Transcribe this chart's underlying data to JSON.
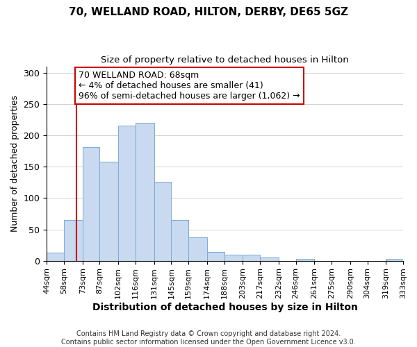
{
  "title": "70, WELLAND ROAD, HILTON, DERBY, DE65 5GZ",
  "subtitle": "Size of property relative to detached houses in Hilton",
  "xlabel": "Distribution of detached houses by size in Hilton",
  "ylabel": "Number of detached properties",
  "bar_edges": [
    44,
    58,
    73,
    87,
    102,
    116,
    131,
    145,
    159,
    174,
    188,
    203,
    217,
    232,
    246,
    261,
    275,
    290,
    304,
    319,
    333
  ],
  "bar_heights": [
    13,
    65,
    181,
    158,
    216,
    220,
    126,
    65,
    37,
    14,
    10,
    10,
    5,
    0,
    3,
    0,
    0,
    0,
    0,
    3
  ],
  "bar_color": "#c8d9f0",
  "bar_edgecolor": "#7baad4",
  "property_line_x": 68,
  "property_line_color": "#cc0000",
  "annotation_line1": "70 WELLAND ROAD: 68sqm",
  "annotation_line2": "← 4% of detached houses are smaller (41)",
  "annotation_line3": "96% of semi-detached houses are larger (1,062) →",
  "annotation_box_edgecolor": "#cc0000",
  "annotation_box_facecolor": "#ffffff",
  "ylim": [
    0,
    310
  ],
  "xlim": [
    44,
    333
  ],
  "yticks": [
    0,
    50,
    100,
    150,
    200,
    250,
    300
  ],
  "footer_line1": "Contains HM Land Registry data © Crown copyright and database right 2024.",
  "footer_line2": "Contains public sector information licensed under the Open Government Licence v3.0.",
  "title_fontsize": 11,
  "subtitle_fontsize": 9.5,
  "xlabel_fontsize": 10,
  "ylabel_fontsize": 9,
  "tick_fontsize": 8,
  "annotation_fontsize": 9,
  "footer_fontsize": 7
}
